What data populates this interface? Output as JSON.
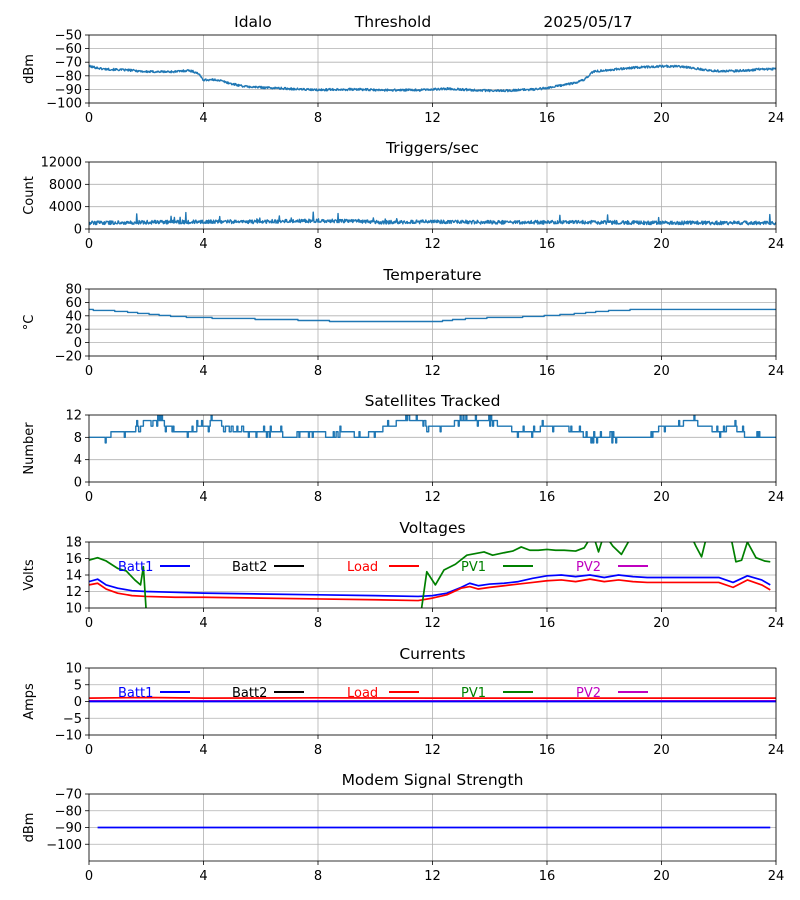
{
  "header": {
    "station": "Idalo",
    "kind": "Threshold",
    "date": "2025/05/17"
  },
  "colors": {
    "series": "#1f77b4",
    "grid": "#b0b0b0",
    "batt1": "#0000ff",
    "batt2": "#000000",
    "load": "#ff0000",
    "pv1": "#008000",
    "pv2": "#bf00bf"
  },
  "chart_data": [
    {
      "id": "threshold",
      "type": "line",
      "title": "",
      "xlabel": "",
      "ylabel": "dBm",
      "xlim": [
        0,
        24
      ],
      "xticks": [
        "0",
        "4",
        "8",
        "12",
        "16",
        "20",
        "24"
      ],
      "ylim": [
        -100,
        -50
      ],
      "yticks": [
        "-50",
        "-60",
        "-70",
        "-80",
        "-90",
        "-100"
      ],
      "grid": true,
      "series": [
        {
          "style": "noisy",
          "noise": 0.8,
          "x": [
            0,
            0.5,
            1,
            1.5,
            2,
            2.5,
            3,
            3.5,
            3.8,
            4,
            4.5,
            5,
            5.5,
            6,
            6.5,
            7,
            7.5,
            8,
            8.5,
            9,
            9.5,
            10,
            10.5,
            11,
            11.5,
            12,
            12.5,
            13,
            13.5,
            14,
            14.5,
            15,
            15.5,
            16,
            16.5,
            17,
            17.3,
            17.6,
            18,
            19,
            20,
            20.5,
            21,
            21.5,
            22,
            22.5,
            23,
            23.5,
            24
          ],
          "y": [
            -73,
            -75,
            -75.5,
            -76,
            -77,
            -77,
            -77,
            -76,
            -78,
            -83,
            -83,
            -86,
            -88,
            -88.5,
            -89,
            -89.5,
            -90,
            -90.5,
            -90,
            -90,
            -90,
            -90.5,
            -90.5,
            -90.5,
            -90.5,
            -90,
            -89.5,
            -90,
            -90.5,
            -91,
            -91,
            -90.5,
            -90,
            -89,
            -87,
            -85,
            -83,
            -77,
            -76,
            -74,
            -73,
            -73,
            -74,
            -75.5,
            -76.5,
            -76.5,
            -76,
            -75,
            -75
          ]
        }
      ]
    },
    {
      "id": "triggers",
      "type": "line",
      "title": "Triggers/sec",
      "xlabel": "",
      "ylabel": "Count",
      "xlim": [
        0,
        24
      ],
      "xticks": [
        "0",
        "4",
        "8",
        "12",
        "16",
        "20",
        "24"
      ],
      "ylim": [
        0,
        12000
      ],
      "yticks": [
        "0",
        "4000",
        "8000",
        "12000"
      ],
      "grid": true,
      "series": [
        {
          "style": "noisy",
          "noise": 330,
          "x": [
            0,
            2,
            4,
            6,
            8,
            9.5,
            10,
            12,
            14,
            16,
            18,
            20,
            22,
            24
          ],
          "y": [
            1100,
            1200,
            1300,
            1300,
            1500,
            1400,
            1200,
            1300,
            1200,
            1200,
            1200,
            1100,
            1100,
            1100
          ]
        }
      ]
    },
    {
      "id": "temperature",
      "type": "line",
      "title": "Temperature",
      "xlabel": "",
      "ylabel": "°C",
      "xlim": [
        0,
        24
      ],
      "xticks": [
        "0",
        "4",
        "8",
        "12",
        "16",
        "20",
        "24"
      ],
      "ylim": [
        -20,
        80
      ],
      "yticks": [
        "80",
        "60",
        "40",
        "20",
        "0",
        "-20"
      ],
      "grid": true,
      "series": [
        {
          "style": "step",
          "x": [
            0,
            1,
            2,
            3,
            4,
            5,
            6,
            7,
            8,
            9,
            10,
            11,
            12,
            13,
            14,
            15,
            16,
            17,
            18,
            19,
            20,
            21,
            22,
            23,
            24
          ],
          "y": [
            49,
            47,
            43,
            39,
            37,
            36,
            35,
            34,
            33,
            31,
            31,
            31,
            31,
            35,
            37,
            38,
            40,
            43,
            47,
            49,
            50,
            50,
            50,
            50,
            49
          ]
        }
      ]
    },
    {
      "id": "satellites",
      "type": "line",
      "title": "Satellites Tracked",
      "xlabel": "",
      "ylabel": "Number",
      "xlim": [
        0,
        24
      ],
      "xticks": [
        "0",
        "4",
        "8",
        "12",
        "16",
        "20",
        "24"
      ],
      "ylim": [
        0,
        12
      ],
      "yticks": [
        "12",
        "8",
        "4",
        "0"
      ],
      "grid": true,
      "series": [
        {
          "style": "sats",
          "x": [
            0,
            0.5,
            1,
            1.5,
            2,
            2.5,
            3,
            3.5,
            4,
            4.5,
            5,
            5.5,
            6,
            6.5,
            7,
            7.5,
            8,
            8.5,
            9,
            9.5,
            10,
            10.5,
            11,
            11.5,
            12,
            12.5,
            13,
            13.5,
            14,
            14.5,
            15,
            15.5,
            16,
            16.5,
            17,
            17.5,
            18,
            18.5,
            19,
            19.5,
            20,
            20.5,
            21,
            21.5,
            22,
            22.5,
            23,
            23.5,
            24
          ],
          "y": [
            8,
            8,
            9,
            9,
            11,
            11,
            9,
            9,
            10,
            11,
            9,
            9,
            9,
            9,
            8,
            9,
            9,
            8,
            9,
            8,
            9,
            10,
            11,
            11,
            10,
            10,
            11,
            11,
            11,
            10,
            9,
            9,
            10,
            10,
            9,
            8,
            8,
            8,
            8,
            8,
            10,
            10,
            11,
            10,
            9,
            10,
            8,
            8,
            8
          ]
        }
      ]
    },
    {
      "id": "voltages",
      "type": "line",
      "title": "Voltages",
      "xlabel": "",
      "ylabel": "Volts",
      "xlim": [
        0,
        24
      ],
      "xticks": [
        "0",
        "4",
        "8",
        "12",
        "16",
        "20",
        "24"
      ],
      "ylim": [
        10,
        18
      ],
      "yticks": [
        "18",
        "16",
        "14",
        "12",
        "10"
      ],
      "grid": true,
      "legend": [
        "Batt1",
        "Batt2",
        "Load",
        "PV1",
        "PV2"
      ],
      "series": [
        {
          "name": "Batt1",
          "color": "#0000ff",
          "x": [
            0,
            0.3,
            0.6,
            1,
            1.5,
            2,
            3,
            4,
            6,
            8,
            10,
            11.5,
            12,
            12.5,
            13,
            13.3,
            13.6,
            14,
            14.5,
            15,
            15.5,
            16,
            16.5,
            17,
            17.5,
            18,
            18.5,
            19,
            19.5,
            20,
            22,
            22.5,
            23,
            23.5,
            23.8
          ],
          "y": [
            13.2,
            13.5,
            12.8,
            12.4,
            12.1,
            12,
            11.9,
            11.8,
            11.7,
            11.6,
            11.5,
            11.4,
            11.5,
            11.8,
            12.5,
            13,
            12.7,
            12.9,
            13,
            13.2,
            13.6,
            13.9,
            14,
            13.8,
            14,
            13.7,
            14,
            13.8,
            13.7,
            13.7,
            13.7,
            13.1,
            13.9,
            13.4,
            12.8
          ]
        },
        {
          "name": "Load",
          "color": "#ff0000",
          "x": [
            0,
            0.3,
            0.6,
            1,
            1.5,
            2,
            3,
            4,
            6,
            8,
            10,
            11.5,
            12,
            12.5,
            13,
            13.3,
            13.6,
            14,
            14.5,
            15,
            15.5,
            16,
            16.5,
            17,
            17.5,
            18,
            18.5,
            19,
            19.5,
            20,
            22,
            22.5,
            23,
            23.5,
            23.8
          ],
          "y": [
            12.8,
            13,
            12.3,
            11.8,
            11.5,
            11.4,
            11.3,
            11.3,
            11.2,
            11.1,
            11,
            10.9,
            11.2,
            11.6,
            12.4,
            12.6,
            12.3,
            12.5,
            12.7,
            12.9,
            13.1,
            13.3,
            13.4,
            13.2,
            13.5,
            13.2,
            13.4,
            13.2,
            13.1,
            13.1,
            13.1,
            12.5,
            13.4,
            12.8,
            12.2
          ]
        },
        {
          "name": "PV1",
          "color": "#008000",
          "x": [
            0,
            0.3,
            0.6,
            1,
            1.3,
            1.6,
            1.8,
            1.9,
            2.0,
            11.6,
            11.8,
            12.1,
            12.4,
            12.8,
            13.2,
            13.5,
            13.8,
            14.1,
            14.5,
            14.8,
            15.1,
            15.4,
            15.7,
            16,
            16.3,
            16.6,
            17,
            17.3,
            17.6,
            17.8,
            18,
            18.3,
            18.6,
            19,
            19.3,
            19.6,
            20,
            20.3,
            20.6,
            21,
            21.2,
            21.4,
            21.6,
            22,
            22.2,
            22.4,
            22.6,
            22.8,
            23,
            23.3,
            23.6,
            23.8
          ],
          "y": [
            15.8,
            16.1,
            15.7,
            14.8,
            14.5,
            13.4,
            12.8,
            15,
            9.5,
            9.5,
            14.4,
            12.8,
            14.6,
            15.3,
            16.4,
            16.6,
            16.8,
            16.4,
            16.7,
            16.9,
            17.4,
            17,
            17,
            17.1,
            17,
            17,
            16.9,
            17.3,
            19,
            16.8,
            19,
            17.5,
            16.5,
            19,
            19,
            19,
            19,
            19,
            19,
            19,
            17.5,
            16.2,
            19,
            19,
            19,
            19,
            15.6,
            15.8,
            18,
            16.1,
            15.7,
            15.6
          ]
        }
      ]
    },
    {
      "id": "currents",
      "type": "line",
      "title": "Currents",
      "xlabel": "",
      "ylabel": "Amps",
      "xlim": [
        0,
        24
      ],
      "xticks": [
        "0",
        "4",
        "8",
        "12",
        "16",
        "20",
        "24"
      ],
      "ylim": [
        -10,
        10
      ],
      "yticks": [
        "10",
        "5",
        "0",
        "-5",
        "-10"
      ],
      "grid": true,
      "legend": [
        "Batt1",
        "Batt2",
        "Load",
        "PV1",
        "PV2"
      ],
      "series": [
        {
          "name": "Load",
          "color": "#ff0000",
          "x": [
            0,
            2,
            4,
            8,
            12,
            16,
            20,
            24
          ],
          "y": [
            1,
            1.2,
            1,
            1.1,
            1,
            1,
            1,
            1
          ]
        },
        {
          "name": "PV2",
          "color": "#bf00bf",
          "x": [
            0,
            4,
            8,
            12,
            16,
            20,
            24
          ],
          "y": [
            0.2,
            0.2,
            0.2,
            0.2,
            0.2,
            0.2,
            0.2
          ]
        },
        {
          "name": "Batt1",
          "color": "#0000ff",
          "x": [
            0,
            4,
            8,
            12,
            16,
            20,
            24
          ],
          "y": [
            0,
            0,
            0,
            0,
            0,
            0,
            0
          ]
        }
      ]
    },
    {
      "id": "modem",
      "type": "line",
      "title": "Modem Signal Strength",
      "xlabel": "",
      "ylabel": "dBm",
      "xlim": [
        0,
        24
      ],
      "xticks": [
        "0",
        "4",
        "8",
        "12",
        "16",
        "20",
        "24"
      ],
      "ylim": [
        -110,
        -70
      ],
      "yticks": [
        "-70",
        "-80",
        "-90",
        "-100"
      ],
      "grid": true,
      "series": [
        {
          "color": "#0000ff",
          "x": [
            0.3,
            23.8
          ],
          "y": [
            -90,
            -90
          ]
        }
      ]
    }
  ]
}
